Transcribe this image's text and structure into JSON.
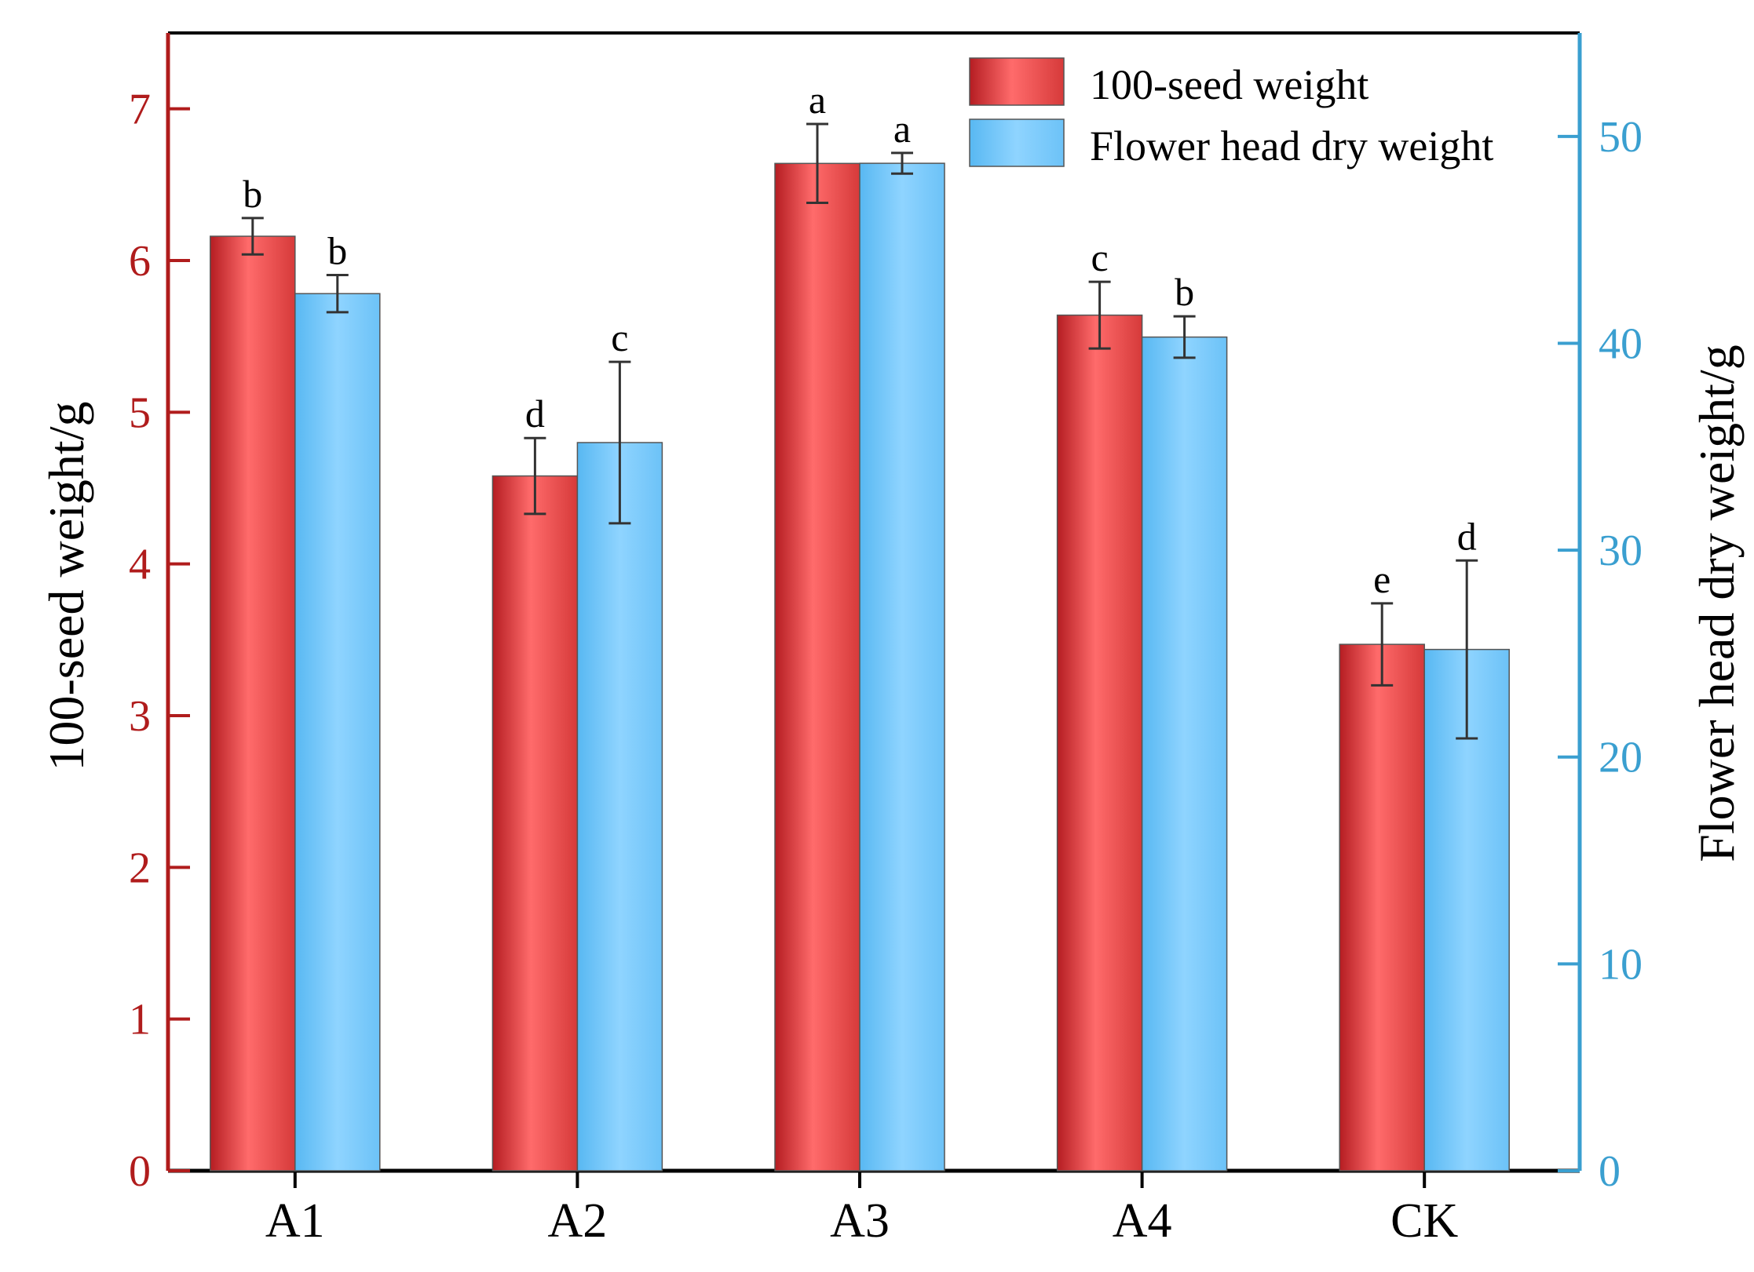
{
  "chart_data": {
    "type": "bar",
    "categories": [
      "A1",
      "A2",
      "A3",
      "A4",
      "CK"
    ],
    "series": [
      {
        "name": "100-seed weight",
        "axis": "left",
        "color": "#f15a5a",
        "values": [
          6.16,
          4.58,
          6.64,
          5.64,
          3.47
        ],
        "errors": [
          0.12,
          0.25,
          0.26,
          0.22,
          0.27
        ],
        "letters": [
          "b",
          "d",
          "a",
          "c",
          "e"
        ]
      },
      {
        "name": "Flower head dry weight",
        "axis": "right",
        "color": "#7fccfb",
        "values": [
          42.4,
          35.2,
          48.7,
          40.3,
          25.2
        ],
        "errors": [
          0.9,
          3.9,
          0.5,
          1.0,
          4.3
        ],
        "letters": [
          "b",
          "c",
          "a",
          "b",
          "d"
        ]
      }
    ],
    "y_left": {
      "label": "100-seed weight/g",
      "ylim": [
        0,
        7.5
      ],
      "ticks": [
        "0",
        "1",
        "2",
        "3",
        "4",
        "5",
        "6",
        "7"
      ],
      "color": "#b01c1c"
    },
    "y_right": {
      "label": "Flower head dry weight/g",
      "ylim": [
        0,
        55
      ],
      "ticks": [
        "0",
        "10",
        "20",
        "30",
        "40",
        "50"
      ],
      "color": "#3a9fd0"
    },
    "grid": false,
    "legend_position": "top-right"
  }
}
